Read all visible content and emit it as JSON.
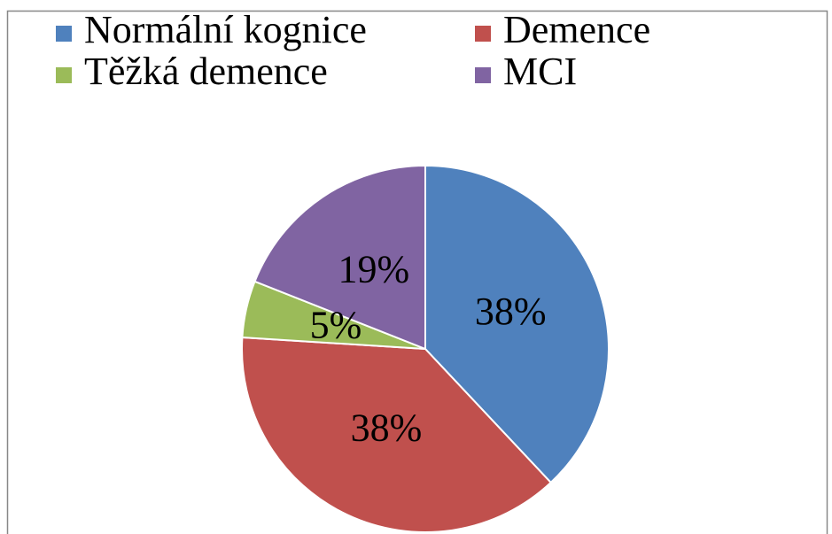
{
  "chart_data": {
    "type": "pie",
    "categories": [
      "Normální kognice",
      "Demence",
      "Těžká demence",
      "MCI"
    ],
    "values": [
      38,
      38,
      5,
      19
    ],
    "value_labels": [
      "38%",
      "38%",
      "5%",
      "19%"
    ],
    "colors": [
      "#4f81bd",
      "#c0504d",
      "#9bbb59",
      "#8064a2"
    ],
    "legend": "top"
  }
}
